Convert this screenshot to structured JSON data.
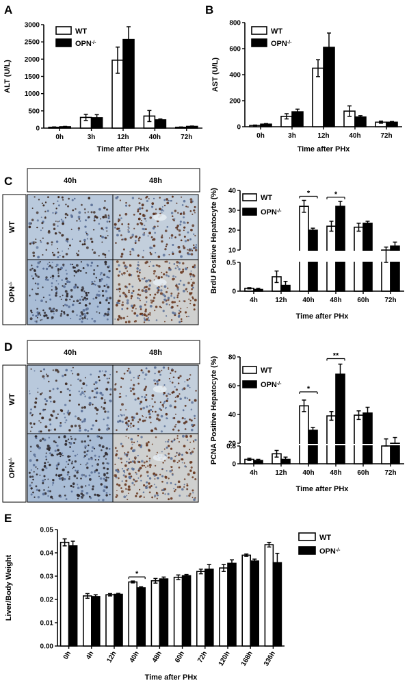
{
  "panels": [
    {
      "id": "A",
      "letter": "A",
      "type": "bar",
      "ylabel": "ALT (U/L)",
      "xlabel": "Time after PHx",
      "series": [
        {
          "name": "WT",
          "fill": "#ffffff",
          "values": [
            25,
            310,
            1970,
            350,
            25
          ],
          "errors": [
            10,
            90,
            380,
            160,
            8
          ]
        },
        {
          "name": "OPN",
          "sup": "-/-",
          "fill": "#000000",
          "values": [
            40,
            300,
            2570,
            240,
            50
          ],
          "errors": [
            10,
            90,
            370,
            25,
            10
          ]
        }
      ],
      "categories": [
        "0h",
        "3h",
        "12h",
        "40h",
        "72h"
      ],
      "ylim": [
        0,
        3000
      ],
      "yticks": [
        "0",
        "500",
        "1000",
        "1500",
        "2000",
        "2500",
        "3000"
      ]
    },
    {
      "id": "B",
      "letter": "B",
      "type": "bar",
      "ylabel": "AST (U/L)",
      "xlabel": "Time after PHx",
      "series": [
        {
          "name": "WT",
          "fill": "#ffffff",
          "values": [
            10,
            80,
            450,
            120,
            35
          ],
          "errors": [
            3,
            20,
            65,
            40,
            8
          ]
        },
        {
          "name": "OPN",
          "sup": "-/-",
          "fill": "#000000",
          "values": [
            20,
            115,
            610,
            75,
            35
          ],
          "errors": [
            4,
            20,
            110,
            10,
            5
          ]
        }
      ],
      "categories": [
        "0h",
        "3h",
        "12h",
        "40h",
        "72h"
      ],
      "ylim": [
        0,
        800
      ],
      "yticks": [
        "0",
        "200",
        "400",
        "600",
        "800"
      ]
    },
    {
      "id": "C",
      "letter": "C",
      "type": "bar",
      "ylabel": "BrdU Positive Hepatocyte (%)",
      "xlabel": "Time after PHx",
      "broken_axis": true,
      "lower_ylim": [
        0,
        0.5
      ],
      "lower_yticks": [
        "0",
        "0.5"
      ],
      "upper_ylim": [
        10,
        40
      ],
      "upper_yticks": [
        "10",
        "20",
        "30",
        "40"
      ],
      "series": [
        {
          "name": "WT",
          "fill": "#ffffff",
          "values": [
            0.05,
            0.25,
            32,
            22,
            21.5,
            10
          ],
          "errors": [
            0.01,
            0.1,
            3,
            2.5,
            2,
            1.5
          ]
        },
        {
          "name": "OPN",
          "sup": "-/-",
          "fill": "#000000",
          "values": [
            0.03,
            0.1,
            20,
            32,
            23.5,
            12
          ],
          "errors": [
            0.02,
            0.07,
            1,
            2.5,
            1,
            2
          ]
        }
      ],
      "categories": [
        "4h",
        "12h",
        "40h",
        "48h",
        "60h",
        "72h"
      ],
      "significance": [
        {
          "category": "40h",
          "label": "*"
        },
        {
          "category": "48h",
          "label": "*"
        }
      ],
      "micrograph": {
        "columns": [
          "40h",
          "48h"
        ],
        "rows": [
          "WT",
          "OPN"
        ],
        "row_sup": "-/-"
      }
    },
    {
      "id": "D",
      "letter": "D",
      "type": "bar",
      "ylabel": "PCNA Positive Hepatocyte (%)",
      "xlabel": "Time after PHx",
      "broken_axis": true,
      "lower_ylim": [
        0,
        0.8
      ],
      "lower_yticks": [
        "0",
        "0.8"
      ],
      "upper_ylim": [
        20,
        80
      ],
      "upper_yticks": [
        "20",
        "40",
        "60",
        "80"
      ],
      "series": [
        {
          "name": "WT",
          "fill": "#ffffff",
          "values": [
            0.2,
            0.45,
            46,
            39,
            39.5,
            17
          ],
          "errors": [
            0.05,
            0.15,
            4,
            3,
            3,
            6
          ]
        },
        {
          "name": "OPN",
          "sup": "-/-",
          "fill": "#000000",
          "values": [
            0.15,
            0.2,
            29,
            68,
            41,
            20
          ],
          "errors": [
            0.05,
            0.1,
            2,
            7,
            4,
            4
          ]
        }
      ],
      "categories": [
        "4h",
        "12h",
        "40h",
        "48h",
        "60h",
        "72h"
      ],
      "significance": [
        {
          "category": "40h",
          "label": "*"
        },
        {
          "category": "48h",
          "label": "**"
        }
      ],
      "micrograph": {
        "columns": [
          "40h",
          "48h"
        ],
        "rows": [
          "WT",
          "OPN"
        ],
        "row_sup": "-/-"
      }
    },
    {
      "id": "E",
      "letter": "E",
      "type": "bar",
      "ylabel": "Liver/Body Weight",
      "xlabel": "Time after PHx",
      "series": [
        {
          "name": "WT",
          "fill": "#ffffff",
          "values": [
            0.0445,
            0.0215,
            0.022,
            0.0275,
            0.028,
            0.0295,
            0.032,
            0.0335,
            0.039,
            0.0435
          ],
          "errors": [
            0.0015,
            0.001,
            0.0005,
            0.0004,
            0.001,
            0.001,
            0.001,
            0.0015,
            0.0005,
            0.001
          ]
        },
        {
          "name": "OPN",
          "sup": "-/-",
          "fill": "#000000",
          "values": [
            0.043,
            0.0212,
            0.0222,
            0.025,
            0.0288,
            0.0302,
            0.033,
            0.0355,
            0.0365,
            0.0358
          ],
          "errors": [
            0.002,
            0.0008,
            0.0004,
            0.0004,
            0.0008,
            0.0005,
            0.002,
            0.0015,
            0.0008,
            0.004
          ]
        }
      ],
      "categories": [
        "0h",
        "4h",
        "12h",
        "40h",
        "48h",
        "60h",
        "72h",
        "120h",
        "168h",
        "336h"
      ],
      "significance": [
        {
          "category": "40h",
          "label": "*"
        }
      ],
      "ylim": [
        0,
        0.05
      ],
      "yticks": [
        "0.00",
        "0.01",
        "0.02",
        "0.03",
        "0.04",
        "0.05"
      ]
    }
  ]
}
